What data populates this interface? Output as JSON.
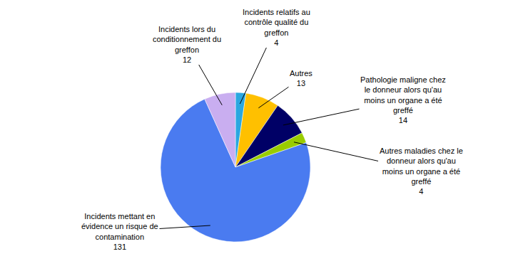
{
  "chart_data": {
    "type": "pie",
    "categories": [
      "Incidents relatifs au contrôle qualité du greffon",
      "Autres",
      "Pathologie maligne chez le donneur alors qu'au moins un organe a été greffé",
      "Autres maladies chez le donneur alors qu'au moins un organe a été greffé",
      "Incidents mettant en évidence un risque de contamination",
      "Incidents lors du conditionnement du greffon"
    ],
    "values": [
      4,
      13,
      14,
      4,
      131,
      12
    ],
    "colors": [
      "#2aa7e0",
      "#ffc000",
      "#000066",
      "#99cc00",
      "#4a7bf0",
      "#c9aef0"
    ],
    "data_labels": true
  }
}
